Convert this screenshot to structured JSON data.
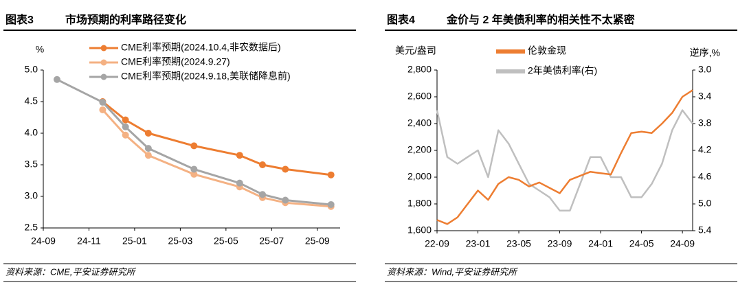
{
  "chart_data": [
    {
      "type": "line",
      "label": "图表3",
      "title": "市场预期的利率路径变化",
      "source": "资料来源：CME,平安证券研究所",
      "y_label": "%",
      "markers": true,
      "x": [
        "24-09",
        "24-11",
        "24-12",
        "25-01",
        "25-03",
        "25-05",
        "25-06",
        "25-07",
        "25-09"
      ],
      "xlim": [
        "24-09",
        "25-10"
      ],
      "xticks": [
        "24-09",
        "24-11",
        "25-01",
        "25-03",
        "25-05",
        "25-07",
        "25-09"
      ],
      "ylim": [
        2.5,
        5.0
      ],
      "yticks": [
        {
          "value": 5.0,
          "label": "5.0"
        },
        {
          "value": 4.5,
          "label": "4.5"
        },
        {
          "value": 4.0,
          "label": "4.0"
        },
        {
          "value": 3.5,
          "label": "3.5"
        },
        {
          "value": 3.0,
          "label": "3.0"
        },
        {
          "value": 2.5,
          "label": "2.5"
        }
      ],
      "series": [
        {
          "name": "CME利率预期(2024.10.4,非农数据后)",
          "color": "#ED7D31",
          "values": [
            null,
            4.5,
            4.21,
            4.0,
            3.8,
            3.65,
            3.5,
            3.43,
            3.34
          ]
        },
        {
          "name": "CME利率预期(2024.9.27)",
          "color": "#F4B183",
          "values": [
            null,
            4.37,
            3.97,
            3.65,
            3.35,
            3.15,
            2.98,
            2.9,
            2.84
          ]
        },
        {
          "name": "CME利率预期(2024.9.18,美联储降息前)",
          "color": "#A5A5A5",
          "values": [
            4.85,
            4.49,
            4.1,
            3.76,
            3.43,
            3.21,
            3.03,
            2.94,
            2.87
          ]
        }
      ]
    },
    {
      "type": "line",
      "label": "图表4",
      "title": "金价与 2 年美债利率的相关性不太紧密",
      "source": "资料来源：Wind,平安证券研究所",
      "y_label": "美元/盎司",
      "y2_label": "逆序,%",
      "markers": false,
      "x": [
        "22-09",
        "22-10",
        "22-11",
        "22-12",
        "23-01",
        "23-02",
        "23-03",
        "23-04",
        "23-05",
        "23-06",
        "23-07",
        "23-08",
        "23-09",
        "23-10",
        "23-11",
        "23-12",
        "24-01",
        "24-02",
        "24-03",
        "24-04",
        "24-05",
        "24-06",
        "24-07",
        "24-08",
        "24-09",
        "24-10"
      ],
      "xlim": [
        "22-09",
        "24-10"
      ],
      "xticks": [
        "22-09",
        "23-01",
        "23-05",
        "23-09",
        "24-01",
        "24-05",
        "24-09"
      ],
      "ylim": [
        1600,
        2800
      ],
      "yticks": [
        {
          "value": 1600,
          "label": "1,600"
        },
        {
          "value": 1800,
          "label": "1,800"
        },
        {
          "value": 2000,
          "label": "2,000"
        },
        {
          "value": 2200,
          "label": "2,200"
        },
        {
          "value": 2400,
          "label": "2,400"
        },
        {
          "value": 2600,
          "label": "2,600"
        },
        {
          "value": 2800,
          "label": "2,800"
        }
      ],
      "y2lim": [
        5.4,
        3.0
      ],
      "y2ticks": [
        {
          "value": 3.0,
          "label": "3.0"
        },
        {
          "value": 3.4,
          "label": "3.4"
        },
        {
          "value": 3.8,
          "label": "3.8"
        },
        {
          "value": 4.2,
          "label": "4.2"
        },
        {
          "value": 4.6,
          "label": "4.6"
        },
        {
          "value": 5.0,
          "label": "5.0"
        },
        {
          "value": 5.4,
          "label": "5.4"
        }
      ],
      "series": [
        {
          "name": "伦敦金现",
          "color": "#ED7D31",
          "values": [
            1680,
            1650,
            1700,
            1800,
            1900,
            1830,
            1950,
            2000,
            1980,
            1930,
            1960,
            1920,
            1880,
            1980,
            2010,
            2040,
            2030,
            2020,
            2180,
            2330,
            2340,
            2330,
            2400,
            2480,
            2600,
            2650
          ]
        },
        {
          "name": "2年美债利率(右)",
          "color": "#BFBFBF",
          "axis": "y2",
          "values": [
            3.6,
            4.3,
            4.4,
            4.3,
            4.2,
            4.6,
            3.9,
            4.1,
            4.4,
            4.7,
            4.8,
            4.9,
            5.1,
            5.1,
            4.7,
            4.3,
            4.3,
            4.6,
            4.6,
            4.9,
            4.9,
            4.7,
            4.4,
            3.9,
            3.6,
            3.8
          ]
        }
      ]
    }
  ]
}
